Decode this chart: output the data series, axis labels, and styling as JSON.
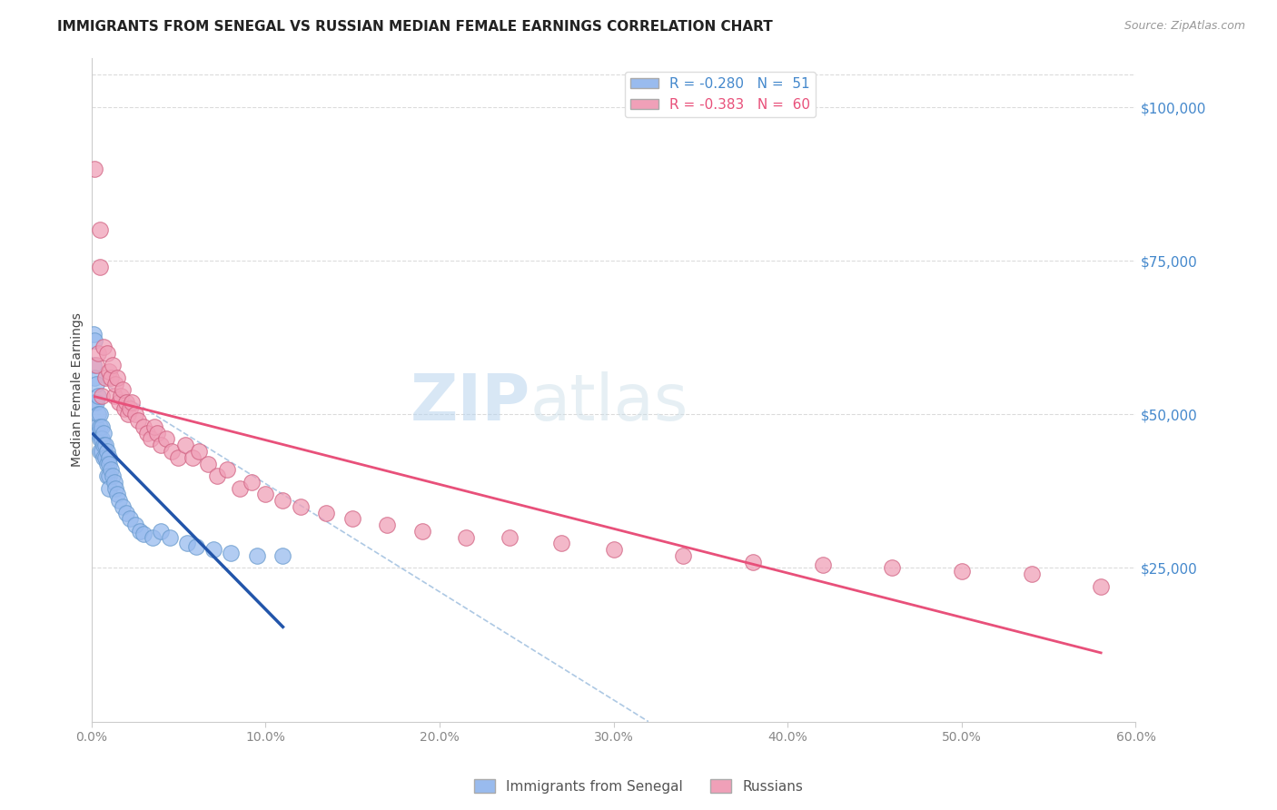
{
  "title": "IMMIGRANTS FROM SENEGAL VS RUSSIAN MEDIAN FEMALE EARNINGS CORRELATION CHART",
  "source": "Source: ZipAtlas.com",
  "ylabel": "Median Female Earnings",
  "ytick_labels": [
    "$25,000",
    "$50,000",
    "$75,000",
    "$100,000"
  ],
  "ytick_values": [
    25000,
    50000,
    75000,
    100000
  ],
  "xlim": [
    0.0,
    0.6
  ],
  "ylim": [
    0,
    108000
  ],
  "background_color": "#ffffff",
  "grid_color": "#cccccc",
  "trend_senegal_color": "#2255aa",
  "trend_russian_color": "#e8507a",
  "trend_dashed_color": "#99bbdd",
  "title_fontsize": 11,
  "source_fontsize": 9,
  "axis_label_fontsize": 10,
  "tick_fontsize": 10,
  "legend_blue_color": "#4488cc",
  "legend_pink_color": "#e8507a",
  "senegal_scatter_color": "#99bbee",
  "senegal_edge_color": "#6699cc",
  "russian_scatter_color": "#f0a0b8",
  "russian_edge_color": "#d06080",
  "series_senegal": {
    "x": [
      0.001,
      0.001,
      0.002,
      0.002,
      0.002,
      0.003,
      0.003,
      0.003,
      0.004,
      0.004,
      0.004,
      0.005,
      0.005,
      0.005,
      0.005,
      0.006,
      0.006,
      0.006,
      0.007,
      0.007,
      0.007,
      0.008,
      0.008,
      0.009,
      0.009,
      0.009,
      0.01,
      0.01,
      0.01,
      0.01,
      0.011,
      0.012,
      0.013,
      0.014,
      0.015,
      0.016,
      0.018,
      0.02,
      0.022,
      0.025,
      0.028,
      0.03,
      0.035,
      0.04,
      0.045,
      0.055,
      0.06,
      0.07,
      0.08,
      0.095,
      0.11
    ],
    "y": [
      63000,
      58000,
      62000,
      56000,
      52000,
      55000,
      52000,
      48000,
      53000,
      50000,
      47000,
      50000,
      48000,
      46000,
      44000,
      48000,
      46000,
      44000,
      47000,
      45000,
      43000,
      45000,
      43000,
      44000,
      42000,
      40000,
      43000,
      42000,
      40000,
      38000,
      41000,
      40000,
      39000,
      38000,
      37000,
      36000,
      35000,
      34000,
      33000,
      32000,
      31000,
      30500,
      30000,
      31000,
      30000,
      29000,
      28500,
      28000,
      27500,
      27000,
      27000
    ]
  },
  "series_russians": {
    "x": [
      0.002,
      0.003,
      0.004,
      0.005,
      0.005,
      0.006,
      0.007,
      0.008,
      0.009,
      0.01,
      0.011,
      0.012,
      0.013,
      0.014,
      0.015,
      0.016,
      0.017,
      0.018,
      0.019,
      0.02,
      0.021,
      0.022,
      0.023,
      0.025,
      0.027,
      0.03,
      0.032,
      0.034,
      0.036,
      0.038,
      0.04,
      0.043,
      0.046,
      0.05,
      0.054,
      0.058,
      0.062,
      0.067,
      0.072,
      0.078,
      0.085,
      0.092,
      0.1,
      0.11,
      0.12,
      0.135,
      0.15,
      0.17,
      0.19,
      0.215,
      0.24,
      0.27,
      0.3,
      0.34,
      0.38,
      0.42,
      0.46,
      0.5,
      0.54,
      0.58
    ],
    "y": [
      90000,
      58000,
      60000,
      80000,
      74000,
      53000,
      61000,
      56000,
      60000,
      57000,
      56000,
      58000,
      53000,
      55000,
      56000,
      52000,
      53000,
      54000,
      51000,
      52000,
      50000,
      51000,
      52000,
      50000,
      49000,
      48000,
      47000,
      46000,
      48000,
      47000,
      45000,
      46000,
      44000,
      43000,
      45000,
      43000,
      44000,
      42000,
      40000,
      41000,
      38000,
      39000,
      37000,
      36000,
      35000,
      34000,
      33000,
      32000,
      31000,
      30000,
      30000,
      29000,
      28000,
      27000,
      26000,
      25500,
      25000,
      24500,
      24000,
      22000
    ]
  }
}
